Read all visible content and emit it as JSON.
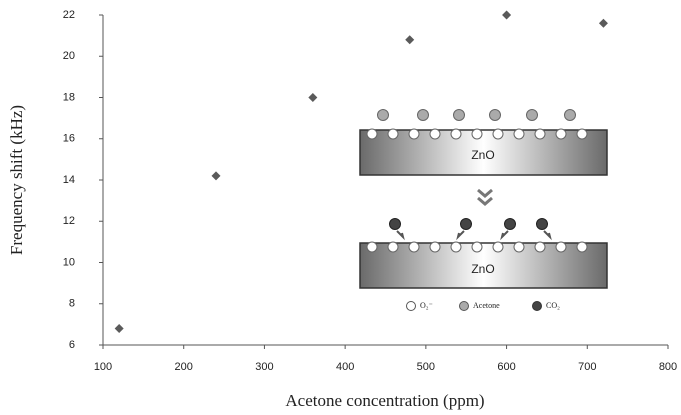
{
  "chart_data": {
    "type": "scatter",
    "xlabel": "Acetone concentration (ppm)",
    "ylabel": "Frequency shift (kHz)",
    "x": [
      120,
      240,
      360,
      480,
      600,
      720
    ],
    "values": [
      6.8,
      14.2,
      18.0,
      20.8,
      22.0,
      21.6
    ],
    "color": "#5a5a5a",
    "xlim": [
      100,
      800
    ],
    "xticks": [
      100,
      200,
      300,
      400,
      500,
      600,
      700,
      800
    ],
    "ylim": [
      6,
      22
    ],
    "yticks": [
      6,
      8,
      10,
      12,
      14,
      16,
      18,
      20,
      22
    ],
    "grid": false
  },
  "inset": {
    "layers": [
      "ZnO",
      "ZnO"
    ],
    "legend": [
      "O₂⁻",
      "Acetone",
      "CO₂"
    ]
  }
}
